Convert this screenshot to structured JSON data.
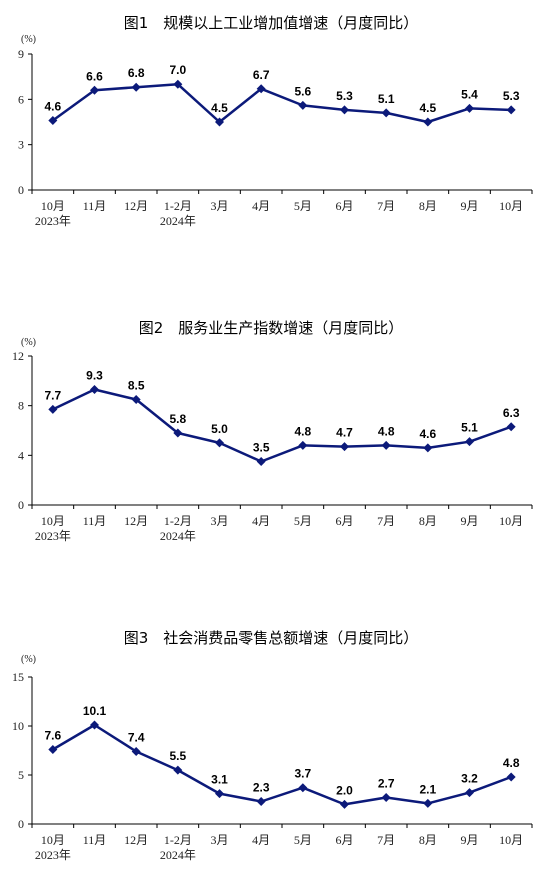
{
  "chart_data": [
    {
      "type": "line",
      "title": "图1　规模以上工业增加值增速（月度同比）",
      "ylabel": "(%)",
      "ylim": [
        0,
        9
      ],
      "yticks": [
        "0",
        "3",
        "6",
        "9"
      ],
      "categories": [
        "10月",
        "11月",
        "12月",
        "1-2月",
        "3月",
        "4月",
        "5月",
        "6月",
        "7月",
        "8月",
        "9月",
        "10月"
      ],
      "category_sublabels": [
        "2023年",
        "",
        "",
        "2024年",
        "",
        "",
        "",
        "",
        "",
        "",
        "",
        ""
      ],
      "values": [
        4.6,
        6.6,
        6.8,
        7.0,
        4.5,
        6.7,
        5.6,
        5.3,
        5.1,
        4.5,
        5.4,
        5.3
      ],
      "value_labels": [
        "4.6",
        "6.6",
        "6.8",
        "7.0",
        "4.5",
        "6.7",
        "5.6",
        "5.3",
        "5.1",
        "4.5",
        "5.4",
        "5.3"
      ]
    },
    {
      "type": "line",
      "title": "图2　服务业生产指数增速（月度同比）",
      "ylabel": "(%)",
      "ylim": [
        0,
        12
      ],
      "yticks": [
        "0",
        "4",
        "8",
        "12"
      ],
      "categories": [
        "10月",
        "11月",
        "12月",
        "1-2月",
        "3月",
        "4月",
        "5月",
        "6月",
        "7月",
        "8月",
        "9月",
        "10月"
      ],
      "category_sublabels": [
        "2023年",
        "",
        "",
        "2024年",
        "",
        "",
        "",
        "",
        "",
        "",
        "",
        ""
      ],
      "values": [
        7.7,
        9.3,
        8.5,
        5.8,
        5.0,
        3.5,
        4.8,
        4.7,
        4.8,
        4.6,
        5.1,
        6.3
      ],
      "value_labels": [
        "7.7",
        "9.3",
        "8.5",
        "5.8",
        "5.0",
        "3.5",
        "4.8",
        "4.7",
        "4.8",
        "4.6",
        "5.1",
        "6.3"
      ]
    },
    {
      "type": "line",
      "title": "图3　社会消费品零售总额增速（月度同比）",
      "ylabel": "(%)",
      "ylim": [
        0,
        15
      ],
      "yticks": [
        "0",
        "5",
        "10",
        "15"
      ],
      "categories": [
        "10月",
        "11月",
        "12月",
        "1-2月",
        "3月",
        "4月",
        "5月",
        "6月",
        "7月",
        "8月",
        "9月",
        "10月"
      ],
      "category_sublabels": [
        "2023年",
        "",
        "",
        "2024年",
        "",
        "",
        "",
        "",
        "",
        "",
        "",
        ""
      ],
      "values": [
        7.6,
        10.1,
        7.4,
        5.5,
        3.1,
        2.3,
        3.7,
        2.0,
        2.7,
        2.1,
        3.2,
        4.8
      ],
      "value_labels": [
        "7.6",
        "10.1",
        "7.4",
        "5.5",
        "3.1",
        "2.3",
        "3.7",
        "2.0",
        "2.7",
        "2.1",
        "3.2",
        "4.8"
      ]
    }
  ],
  "colors": {
    "line": "#0c1a7a",
    "axis": "#000000"
  }
}
